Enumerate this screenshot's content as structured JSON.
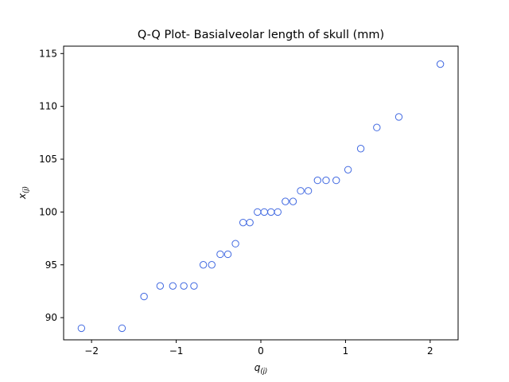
{
  "chart_data": {
    "type": "scatter",
    "title": "Q-Q Plot- Basialveolar length of skull (mm)",
    "xlabel": {
      "main": "q",
      "sub": "(j)"
    },
    "ylabel": {
      "main": "x",
      "sub": "(j)"
    },
    "xlim": [
      -2.33,
      2.33
    ],
    "ylim": [
      87.9,
      115.7
    ],
    "xticks": [
      -2,
      -1,
      0,
      1,
      2
    ],
    "xtick_labels": [
      "−2",
      "−1",
      "0",
      "1",
      "2"
    ],
    "yticks": [
      90,
      95,
      100,
      105,
      110,
      115
    ],
    "ytick_labels": [
      "90",
      "95",
      "100",
      "105",
      "110",
      "115"
    ],
    "grid": false,
    "marker": "open-circle",
    "color": "#4169e1",
    "points": [
      [
        -2.12,
        89
      ],
      [
        -1.64,
        89
      ],
      [
        -1.38,
        92
      ],
      [
        -1.19,
        93
      ],
      [
        -1.04,
        93
      ],
      [
        -0.91,
        93
      ],
      [
        -0.79,
        93
      ],
      [
        -0.68,
        95
      ],
      [
        -0.58,
        95
      ],
      [
        -0.48,
        96
      ],
      [
        -0.39,
        96
      ],
      [
        -0.3,
        97
      ],
      [
        -0.21,
        99
      ],
      [
        -0.13,
        99
      ],
      [
        -0.04,
        100
      ],
      [
        0.04,
        100
      ],
      [
        0.12,
        100
      ],
      [
        0.2,
        100
      ],
      [
        0.29,
        101
      ],
      [
        0.38,
        101
      ],
      [
        0.47,
        102
      ],
      [
        0.56,
        102
      ],
      [
        0.67,
        103
      ],
      [
        0.77,
        103
      ],
      [
        0.89,
        103
      ],
      [
        1.03,
        104
      ],
      [
        1.18,
        106
      ],
      [
        1.37,
        108
      ],
      [
        1.63,
        109
      ],
      [
        2.12,
        114
      ]
    ]
  }
}
